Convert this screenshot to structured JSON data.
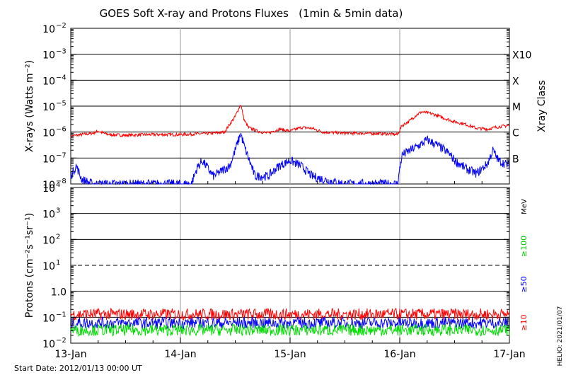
{
  "title": "GOES Soft X-ray and Protons Fluxes   (1min & 5min data)",
  "start_date": "Start Date: 2012/01/13 00:00 UT",
  "credit": "HELIO: 2021/01/07",
  "colors": {
    "xray_long": "#ff0000",
    "xray_short": "#0000ff",
    "proton_10": "#ff0000",
    "proton_50": "#0000ff",
    "proton_100": "#00dd00",
    "grid_time": "#aaaaaa"
  },
  "chart_data": [
    {
      "type": "line",
      "name": "xray",
      "ylabel": "X-rays (Watts m⁻²)",
      "yscale": "log",
      "ylim_exp": [
        -8,
        -2
      ],
      "ytick_exponents": [
        -8,
        -7,
        -6,
        -5,
        -4,
        -3,
        -2
      ],
      "right_axis_label": "Xray Class",
      "classes": [
        {
          "label": "B",
          "exp": -7
        },
        {
          "label": "C",
          "exp": -6
        },
        {
          "label": "M",
          "exp": -5
        },
        {
          "label": "X",
          "exp": -4
        },
        {
          "label": "X10",
          "exp": -3
        }
      ],
      "xlim_days": [
        13,
        17
      ],
      "series": [
        {
          "name": "long",
          "color": "#ff0000",
          "x": [
            13.0,
            13.1,
            13.2,
            13.25,
            13.3,
            13.35,
            13.5,
            13.7,
            13.9,
            14.0,
            14.15,
            14.3,
            14.4,
            14.45,
            14.5,
            14.55,
            14.58,
            14.62,
            14.7,
            14.8,
            14.9,
            15.0,
            15.1,
            15.2,
            15.3,
            15.5,
            15.7,
            15.9,
            15.98,
            16.02,
            16.08,
            16.15,
            16.2,
            16.3,
            16.4,
            16.5,
            16.6,
            16.7,
            16.8,
            16.9,
            17.0
          ],
          "y": [
            7e-07,
            8e-07,
            9e-07,
            1.1e-06,
            9e-07,
            8e-07,
            7.5e-07,
            8e-07,
            8e-07,
            8e-07,
            8.5e-07,
            9e-07,
            1e-06,
            2e-06,
            4e-06,
            1.2e-05,
            3e-06,
            1.5e-06,
            1.1e-06,
            9e-07,
            1.3e-06,
            1.1e-06,
            1.5e-06,
            1.4e-06,
            1e-06,
            9e-07,
            9e-07,
            8.5e-07,
            8e-07,
            1.8e-06,
            2.5e-06,
            4.5e-06,
            6e-06,
            5e-06,
            3.5e-06,
            2.5e-06,
            2e-06,
            1.4e-06,
            1.3e-06,
            1.6e-06,
            1.8e-06
          ]
        },
        {
          "name": "short",
          "color": "#0000ff",
          "x": [
            13.0,
            13.05,
            13.1,
            13.2,
            13.3,
            13.5,
            13.8,
            14.0,
            14.1,
            14.15,
            14.2,
            14.3,
            14.45,
            14.5,
            14.55,
            14.58,
            14.62,
            14.68,
            14.8,
            14.9,
            15.0,
            15.1,
            15.2,
            15.3,
            15.5,
            15.8,
            15.98,
            16.02,
            16.1,
            16.2,
            16.25,
            16.35,
            16.45,
            16.5,
            16.6,
            16.7,
            16.8,
            16.85,
            16.9,
            17.0
          ],
          "y": [
            2e-08,
            5e-08,
            1.5e-08,
            1e-08,
            1e-08,
            1e-08,
            1e-08,
            1e-08,
            1e-08,
            4e-08,
            8e-08,
            2e-08,
            5e-08,
            2e-07,
            9e-07,
            3e-07,
            1e-07,
            2e-08,
            2e-08,
            5e-08,
            8e-08,
            5e-08,
            2e-08,
            1.5e-08,
            1e-08,
            1e-08,
            1e-08,
            1.3e-07,
            2e-07,
            3.5e-07,
            5e-07,
            3e-07,
            1.5e-07,
            8e-08,
            4e-08,
            2.5e-08,
            6e-08,
            2e-07,
            8e-08,
            5e-08
          ]
        }
      ]
    },
    {
      "type": "line",
      "name": "protons",
      "ylabel": "Protons (cm⁻²s⁻¹sr⁻¹)",
      "yscale": "log",
      "ylim_exp": [
        -2,
        4
      ],
      "ytick_exponents": [
        -2,
        -1,
        0,
        1,
        2,
        3,
        4
      ],
      "dashed_threshold_exp": 1,
      "unit_label": "MeV",
      "xlim_days": [
        13,
        17
      ],
      "series": [
        {
          "name": "≥10",
          "color": "#ff0000",
          "baseline": 0.13
        },
        {
          "name": "≥50",
          "color": "#0000ff",
          "baseline": 0.06
        },
        {
          "name": "≥100",
          "color": "#00dd00",
          "baseline": 0.032
        }
      ],
      "x_tick_labels": [
        "13-Jan",
        "14-Jan",
        "15-Jan",
        "16-Jan",
        "17-Jan"
      ]
    }
  ]
}
